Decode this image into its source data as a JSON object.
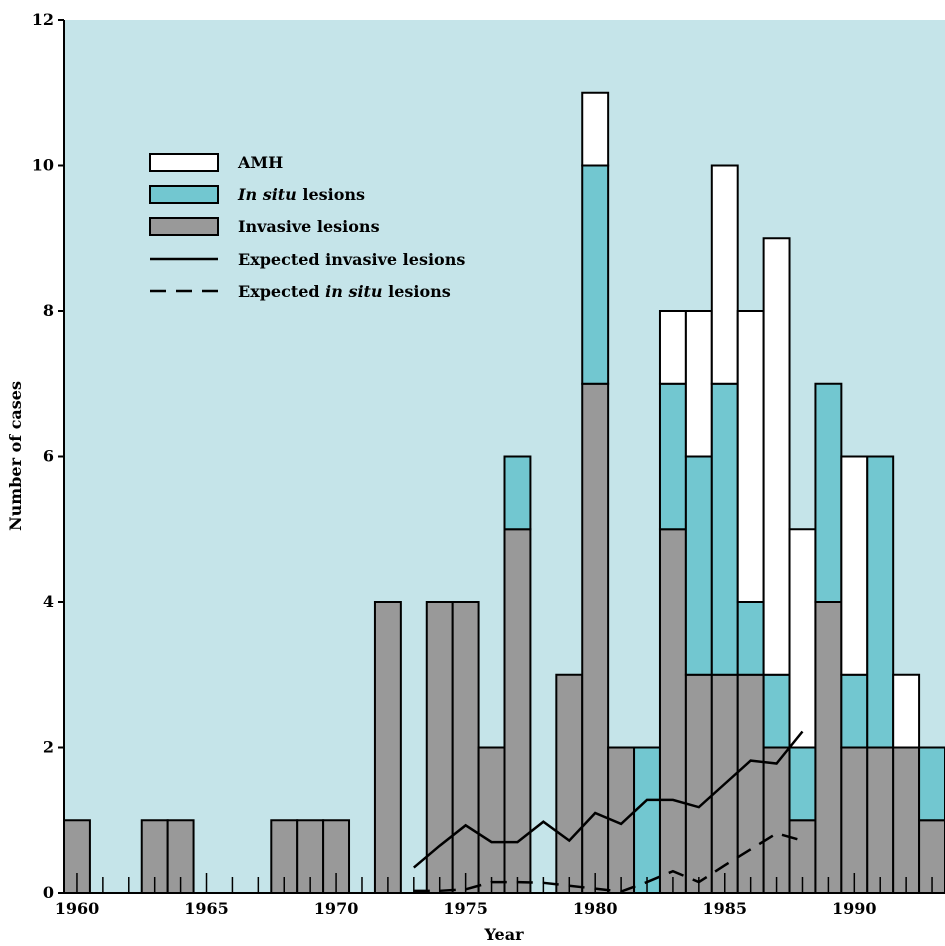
{
  "chart_data": {
    "type": "bar",
    "stacked": true,
    "xlabel": "Year",
    "ylabel": "Number of cases",
    "xlim": [
      1959.5,
      1993.5
    ],
    "ylim": [
      0,
      12
    ],
    "xticks": [
      1960,
      1965,
      1970,
      1975,
      1980,
      1985,
      1990
    ],
    "yticks": [
      0,
      2,
      4,
      6,
      8,
      10,
      12
    ],
    "grid": false,
    "background": "#c5e4e9",
    "legend_position": "top-left",
    "legend": [
      {
        "key": "amh",
        "text": "AMH",
        "swatch": "bar"
      },
      {
        "key": "in_situ",
        "text_italic": "In situ",
        "text": " lesions",
        "swatch": "bar"
      },
      {
        "key": "invasive",
        "text": "Invasive lesions",
        "swatch": "bar"
      },
      {
        "key": "expected_invasive",
        "text": "Expected invasive lesions",
        "swatch": "solid-line"
      },
      {
        "key": "expected_in_situ",
        "text": "Expected ",
        "text_italic": "in situ",
        "text_tail": " lesions",
        "swatch": "dashed-line"
      }
    ],
    "categories": [
      1960,
      1961,
      1962,
      1963,
      1964,
      1965,
      1966,
      1967,
      1968,
      1969,
      1970,
      1971,
      1972,
      1973,
      1974,
      1975,
      1976,
      1977,
      1978,
      1979,
      1980,
      1981,
      1982,
      1983,
      1984,
      1985,
      1986,
      1987,
      1988,
      1989,
      1990,
      1991,
      1992,
      1993
    ],
    "series": [
      {
        "key": "invasive",
        "name": "Invasive lesions",
        "color": "#999999",
        "values": [
          1,
          0,
          0,
          1,
          1,
          0,
          0,
          0,
          1,
          1,
          1,
          0,
          4,
          0,
          4,
          4,
          2,
          5,
          0,
          3,
          7,
          2,
          0,
          5,
          3,
          3,
          3,
          2,
          1,
          4,
          2,
          2,
          2,
          1
        ]
      },
      {
        "key": "in_situ",
        "name": "In situ lesions",
        "color": "#72c7d0",
        "values": [
          0,
          0,
          0,
          0,
          0,
          0,
          0,
          0,
          0,
          0,
          0,
          0,
          0,
          0,
          0,
          0,
          0,
          1,
          0,
          0,
          3,
          0,
          2,
          2,
          3,
          4,
          1,
          1,
          1,
          3,
          1,
          4,
          0,
          1
        ]
      },
      {
        "key": "amh",
        "name": "AMH",
        "color": "#ffffff",
        "values": [
          0,
          0,
          0,
          0,
          0,
          0,
          0,
          0,
          0,
          0,
          0,
          0,
          0,
          0,
          0,
          0,
          0,
          0,
          0,
          0,
          1,
          0,
          0,
          1,
          2,
          3,
          4,
          6,
          3,
          0,
          3,
          0,
          1,
          0
        ]
      }
    ],
    "lines": [
      {
        "key": "expected_invasive",
        "name": "Expected invasive lesions",
        "style": "solid",
        "x": [
          1973,
          1974,
          1975,
          1976,
          1977,
          1978,
          1979,
          1980,
          1981,
          1982,
          1983,
          1984,
          1985,
          1986,
          1987,
          1988
        ],
        "y": [
          0.35,
          0.65,
          0.93,
          0.7,
          0.7,
          0.98,
          0.72,
          1.1,
          0.95,
          1.28,
          1.28,
          1.18,
          1.5,
          1.82,
          1.78,
          2.22
        ]
      },
      {
        "key": "expected_in_situ",
        "name": "Expected in situ lesions",
        "style": "dashed",
        "x": [
          1973,
          1974,
          1975,
          1976,
          1977,
          1978,
          1979,
          1980,
          1981,
          1982,
          1983,
          1984,
          1985,
          1986,
          1987,
          1988
        ],
        "y": [
          0.03,
          0.03,
          0.05,
          0.15,
          0.15,
          0.14,
          0.1,
          0.06,
          0.02,
          0.15,
          0.3,
          0.15,
          0.38,
          0.6,
          0.82,
          0.72
        ]
      }
    ]
  }
}
